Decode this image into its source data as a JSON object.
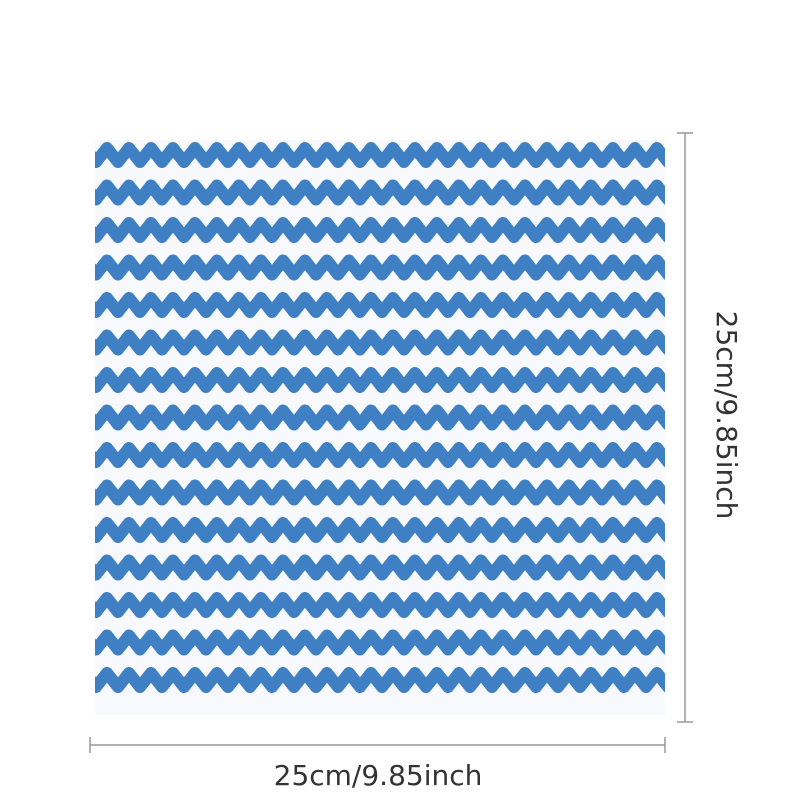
{
  "dimensions": {
    "width_label": "25cm/9.85inch",
    "height_label": "25cm/9.85inch"
  }
}
